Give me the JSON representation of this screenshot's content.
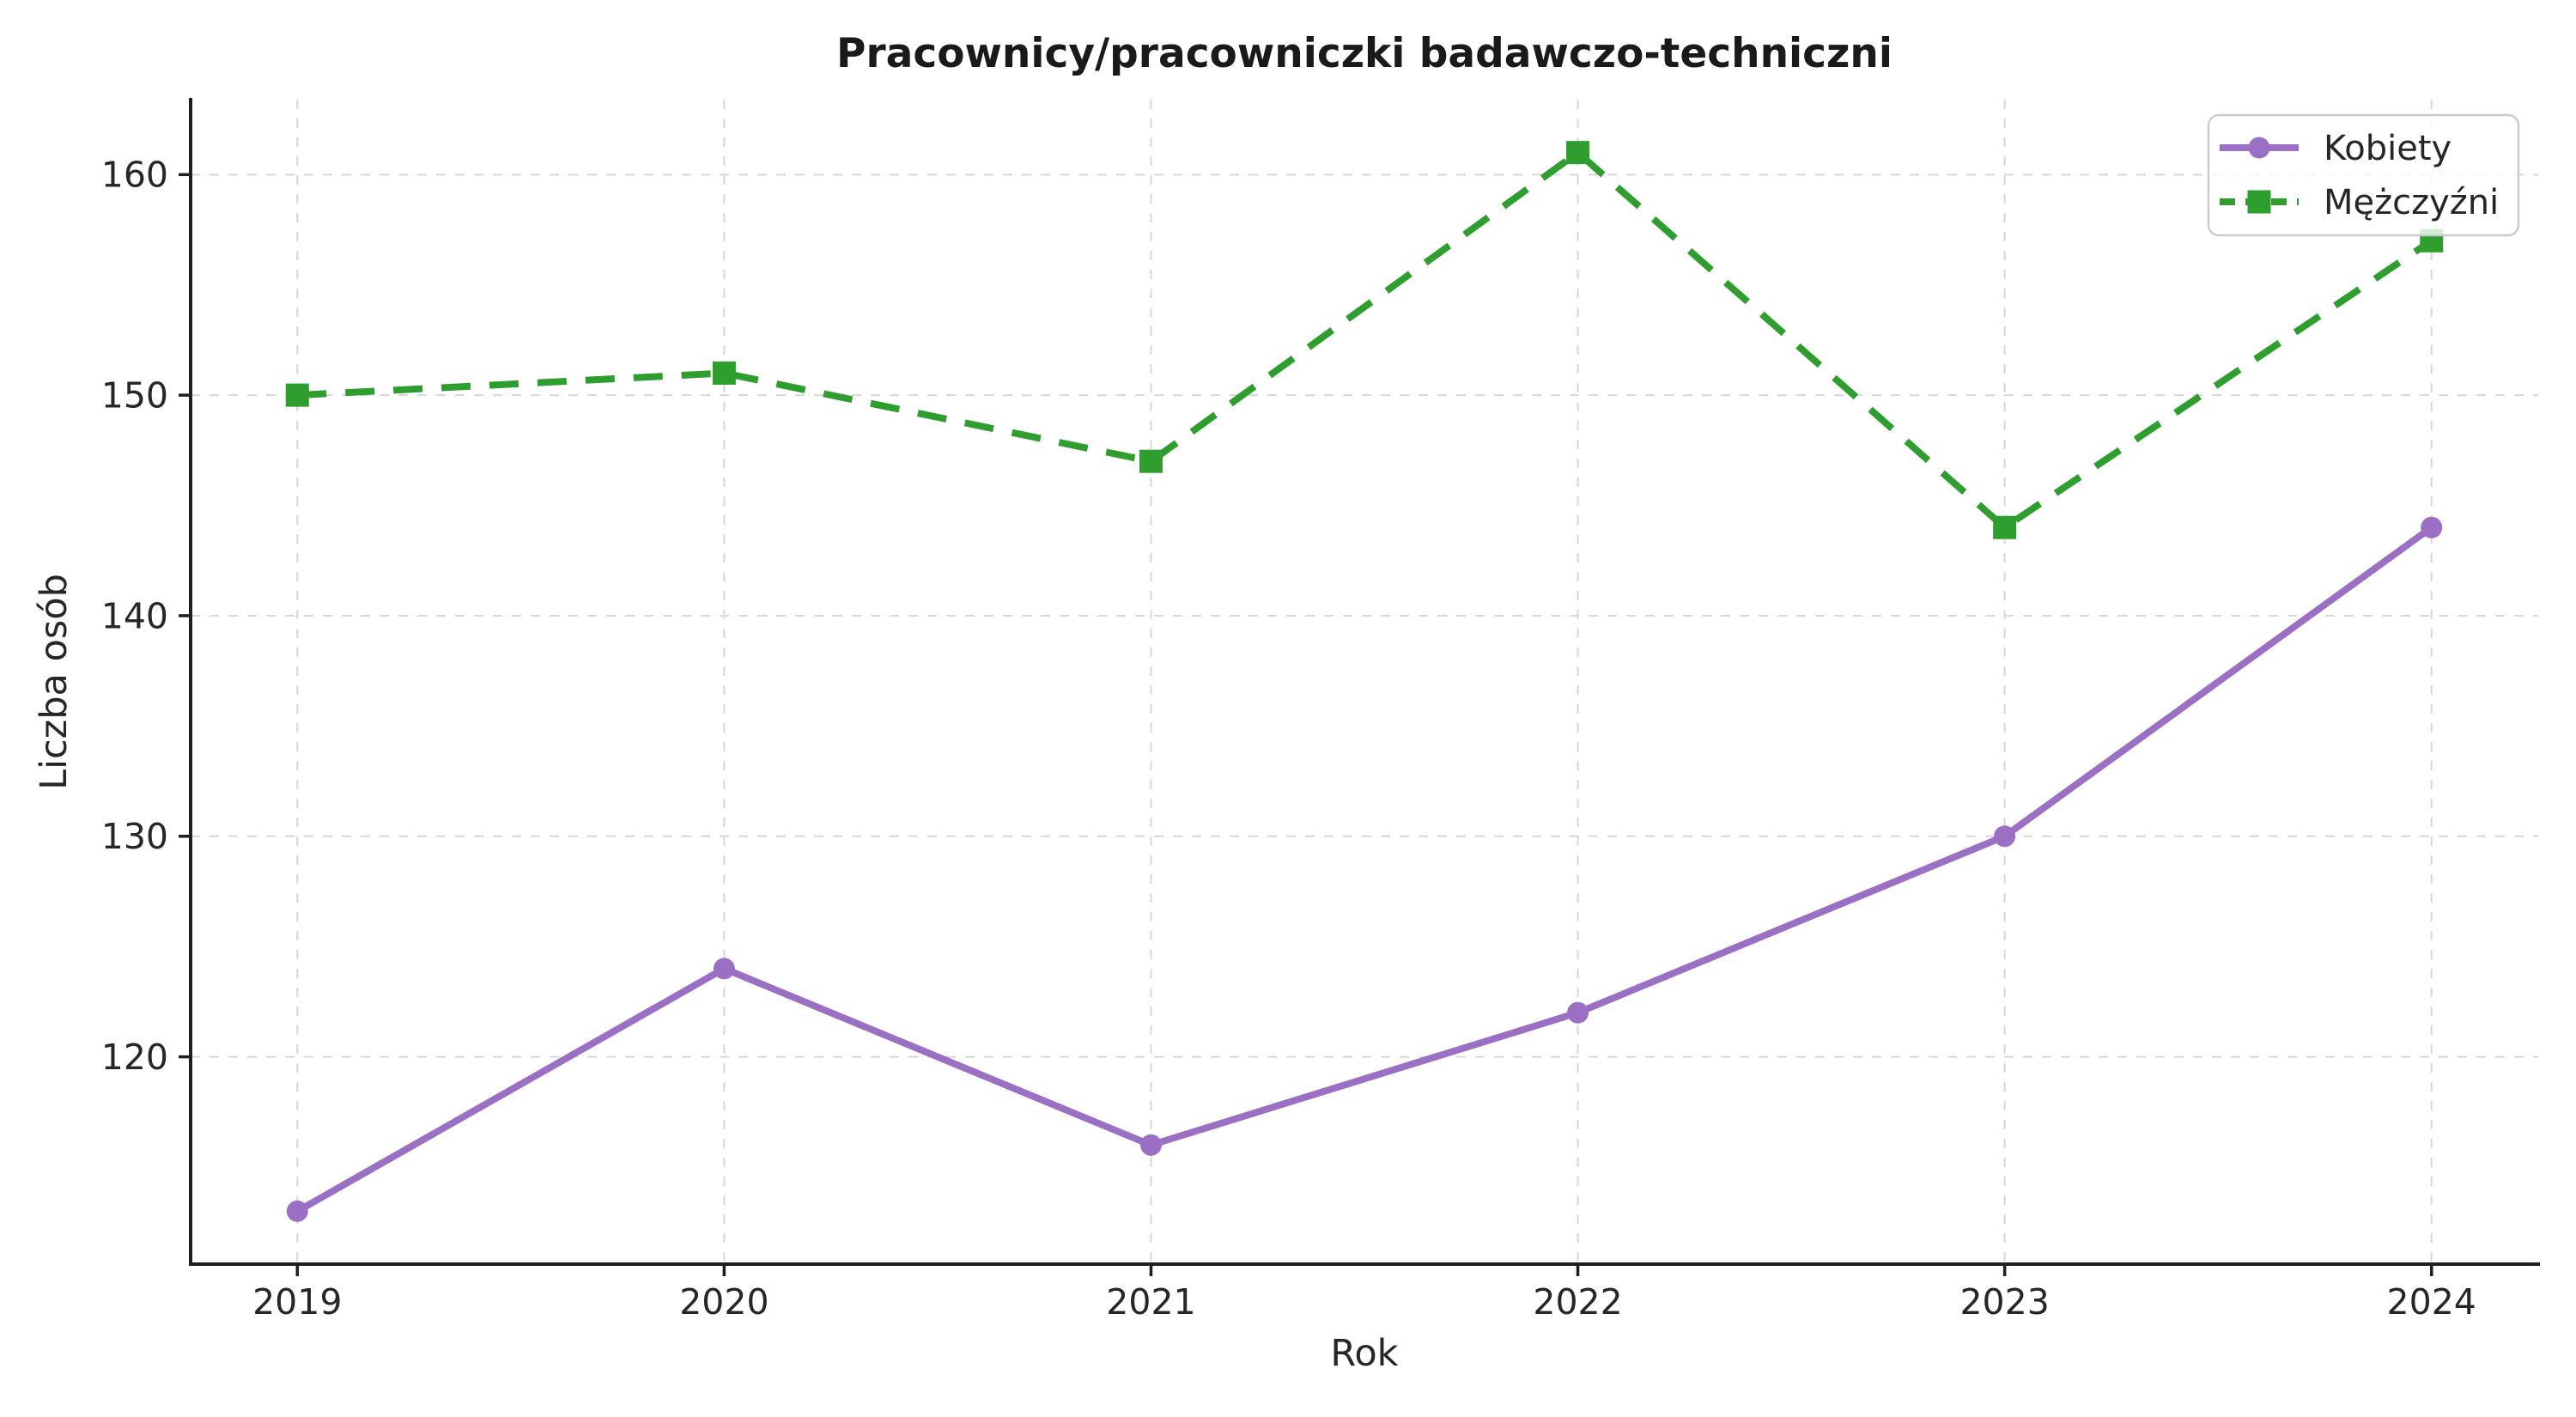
{
  "chart_data": {
    "type": "line",
    "title": "Pracownicy/pracowniczki badawczo-techniczni",
    "xlabel": "Rok",
    "ylabel": "Liczba osób",
    "categories": [
      2019,
      2020,
      2021,
      2022,
      2023,
      2024
    ],
    "series": [
      {
        "name": "Kobiety",
        "values": [
          113,
          124,
          116,
          122,
          130,
          144
        ],
        "color": "#9a6fc4",
        "line_style": "solid",
        "marker": "circle"
      },
      {
        "name": "Mężczyźni",
        "values": [
          150,
          151,
          147,
          161,
          144,
          157
        ],
        "color": "#2e9e2e",
        "line_style": "dashed",
        "marker": "square"
      }
    ],
    "xticks": [
      2019,
      2020,
      2021,
      2022,
      2023,
      2024
    ],
    "yticks": [
      120,
      130,
      140,
      150,
      160
    ],
    "xlim": [
      2018.75,
      2024.25
    ],
    "ylim": [
      110.6,
      163.4
    ],
    "grid": true,
    "grid_style": "dashed",
    "legend_position": "upper right",
    "colors": {
      "grid": "#d7d7d7",
      "spine": "#1f1f1f",
      "text": "#262626",
      "legend_border": "#cccccc",
      "legend_background": "rgba(255,255,255,0.8)"
    }
  }
}
